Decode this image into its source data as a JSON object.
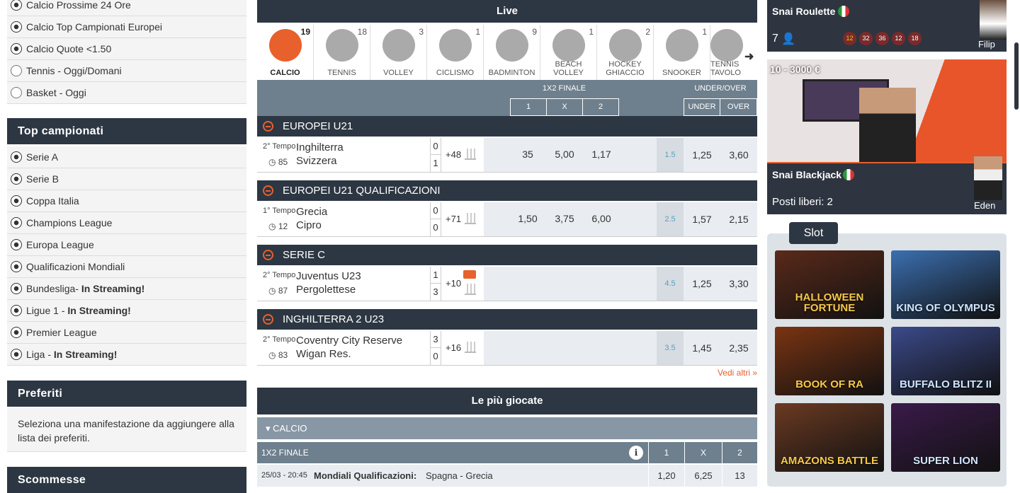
{
  "left": {
    "quick_links": [
      {
        "label": "Calcio Prossime 24 Ore",
        "icon": "soccer-ball-icon"
      },
      {
        "label": "Calcio Top Campionati Europei",
        "icon": "soccer-ball-icon"
      },
      {
        "label": "Calcio Quote <1.50",
        "icon": "soccer-ball-icon"
      },
      {
        "label": "Tennis - Oggi/Domani",
        "icon": "tennis-ball-icon"
      },
      {
        "label": "Basket - Oggi",
        "icon": "basketball-icon"
      }
    ],
    "top_title": "Top campionati",
    "top_items": [
      {
        "label": "Serie A",
        "bold": ""
      },
      {
        "label": "Serie B",
        "bold": ""
      },
      {
        "label": "Coppa Italia",
        "bold": ""
      },
      {
        "label": "Champions League",
        "bold": ""
      },
      {
        "label": "Europa League",
        "bold": ""
      },
      {
        "label": "Qualificazioni Mondiali",
        "bold": ""
      },
      {
        "label": "Bundesliga- ",
        "bold": "In Streaming!"
      },
      {
        "label": "Ligue 1 - ",
        "bold": "In Streaming!"
      },
      {
        "label": "Premier League",
        "bold": ""
      },
      {
        "label": "Liga - ",
        "bold": "In Streaming!"
      }
    ],
    "preferiti_title": "Preferiti",
    "preferiti_text": "Seleziona una manifestazione da aggiungere alla lista dei preferiti.",
    "scommesse_title": "Scommesse"
  },
  "live": {
    "title": "Live",
    "sports": [
      {
        "label": "CALCIO",
        "count": "19",
        "active": true
      },
      {
        "label": "TENNIS",
        "count": "18"
      },
      {
        "label": "VOLLEY",
        "count": "3"
      },
      {
        "label": "CICLISMO",
        "count": "1"
      },
      {
        "label": "BADMINTON",
        "count": "9"
      },
      {
        "label": "BEACH VOLLEY",
        "count": "1"
      },
      {
        "label": "HOCKEY GHIACCIO",
        "count": "2"
      },
      {
        "label": "SNOOKER",
        "count": "1"
      },
      {
        "label": "TENNIS TAVOLO",
        "count": ""
      }
    ],
    "market_1x2": "1X2 FINALE",
    "cols_1x2": [
      "1",
      "X",
      "2"
    ],
    "market_uo": "UNDER/OVER",
    "cols_uo": [
      "UNDER",
      "OVER"
    ],
    "groups": [
      {
        "name": "EUROPEI U21",
        "period": "2° Tempo",
        "minute": "85",
        "home": "Inghilterra",
        "away": "Svizzera",
        "score_home": "0",
        "score_away": "1",
        "more": "+48",
        "odds": [
          "35",
          "5,00",
          "1,17"
        ],
        "line": "1.5",
        "under": "1,25",
        "over": "3,60",
        "video": false
      },
      {
        "name": "EUROPEI U21 QUALIFICAZIONI",
        "period": "1° Tempo",
        "minute": "12",
        "home": "Grecia",
        "away": "Cipro",
        "score_home": "0",
        "score_away": "0",
        "more": "+71",
        "odds": [
          "1,50",
          "3,75",
          "6,00"
        ],
        "line": "2.5",
        "under": "1,57",
        "over": "2,15",
        "video": false
      },
      {
        "name": "SERIE C",
        "period": "2° Tempo",
        "minute": "87",
        "home": "Juventus U23",
        "away": "Pergolettese",
        "score_home": "1",
        "score_away": "3",
        "more": "+10",
        "odds": [
          "",
          "",
          ""
        ],
        "line": "4.5",
        "under": "1,25",
        "over": "3,30",
        "video": true
      },
      {
        "name": "INGHILTERRA 2 U23",
        "period": "2° Tempo",
        "minute": "83",
        "home": "Coventry City Reserve",
        "away": "Wigan Res.",
        "score_home": "3",
        "score_away": "0",
        "more": "+16",
        "odds": [
          "",
          "",
          ""
        ],
        "line": "3.5",
        "under": "1,45",
        "over": "2,35",
        "video": false
      }
    ],
    "see_more": "Vedi altri »"
  },
  "popular": {
    "title": "Le più giocate",
    "sport": "CALCIO",
    "market": "1X2 FINALE",
    "cols": [
      "1",
      "X",
      "2"
    ],
    "rows": [
      {
        "datetime": "25/03 - 20:45",
        "competition": "Mondiali Qualificazioni:",
        "match": "Spagna - Grecia",
        "odds": [
          "1,20",
          "6,25",
          "13"
        ]
      }
    ]
  },
  "casino": {
    "roulette": {
      "name": "Snai Roulette",
      "players": "7",
      "numbers": [
        "12",
        "32",
        "36",
        "12",
        "18"
      ],
      "dealer": "Filip"
    },
    "blackjack": {
      "limits": "10 - 3000 €",
      "name": "Snai Blackjack",
      "seats": "Posti liberi: 2",
      "dealer": "Eden"
    },
    "slot_title": "Slot",
    "slots": [
      {
        "name": "HALLOWEEN FORTUNE",
        "color": "#5a2a1a"
      },
      {
        "name": "KING OF OLYMPUS",
        "color": "#3b6fb0"
      },
      {
        "name": "BOOK OF RA",
        "color": "#7a3412"
      },
      {
        "name": "BUFFALO BLITZ II",
        "color": "#3b4a8a"
      },
      {
        "name": "AMAZONS BATTLE",
        "color": "#6b3a22"
      },
      {
        "name": "SUPER LION",
        "color": "#3a1a4a"
      }
    ]
  },
  "colors": {
    "dark": "#2d3743",
    "accent": "#e8602c",
    "header_gray": "#6e7f8d"
  }
}
